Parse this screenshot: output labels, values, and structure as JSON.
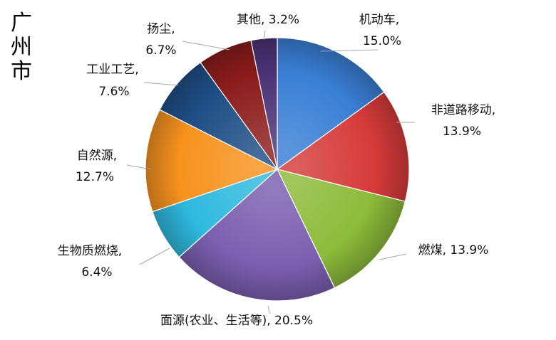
{
  "chart_data": {
    "type": "pie",
    "title": "广州市",
    "slices": [
      {
        "name": "机动车",
        "value": 15.0,
        "label": "15.0%",
        "color": "#3a7fd5"
      },
      {
        "name": "非道路移动",
        "value": 13.9,
        "label": "13.9%",
        "color": "#d63b3b"
      },
      {
        "name": "燃煤",
        "value": 13.9,
        "label": "13.9%",
        "color": "#8dbb3a"
      },
      {
        "name": "面源(农业、生活等)",
        "value": 20.5,
        "label": "20.5%",
        "color": "#7b5fb0"
      },
      {
        "name": "生物质燃烧",
        "value": 6.4,
        "label": "6.4%",
        "color": "#2fb9df"
      },
      {
        "name": "自然源",
        "value": 12.7,
        "label": "12.7%",
        "color": "#f7931e"
      },
      {
        "name": "工业工艺",
        "value": 7.6,
        "label": "7.6%",
        "color": "#1f4e85"
      },
      {
        "name": "扬尘",
        "value": 6.7,
        "label": "6.7%",
        "color": "#8b1c1c"
      },
      {
        "name": "其他",
        "value": 3.2,
        "label": "3.2%",
        "color": "#4b3275"
      }
    ],
    "start_angle": "12 o'clock",
    "direction": "clockwise",
    "legend": "none"
  }
}
